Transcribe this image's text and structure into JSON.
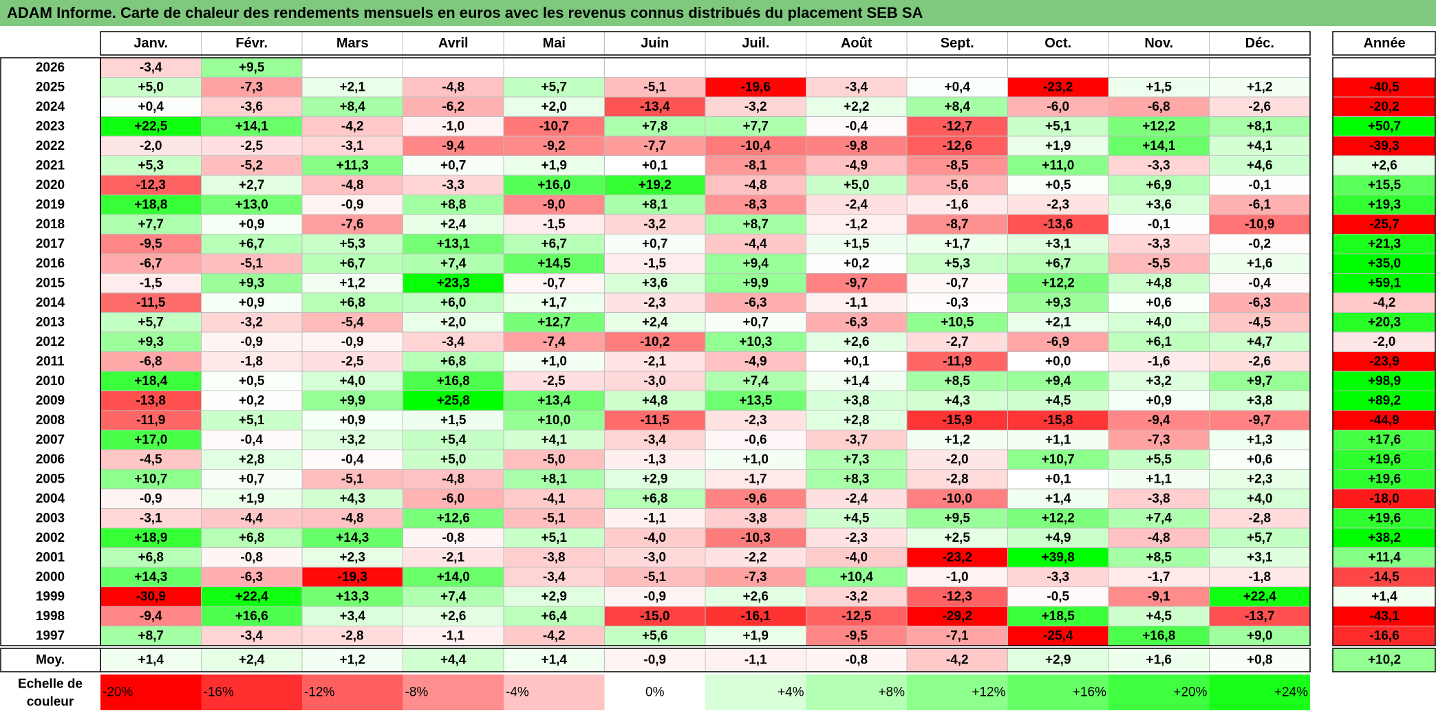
{
  "title": "ADAM Informe. Carte de chaleur des rendements mensuels en euros avec les revenus connus distribués du placement SEB SA",
  "chart_data": {
    "type": "heatmap",
    "months": [
      "Janv.",
      "Févr.",
      "Mars",
      "Avril",
      "Mai",
      "Juin",
      "Juil.",
      "Août",
      "Sept.",
      "Oct.",
      "Nov.",
      "Déc."
    ],
    "year_header": "Année",
    "rows": [
      {
        "year": "2026",
        "values": [
          -3.4,
          9.5,
          null,
          null,
          null,
          null,
          null,
          null,
          null,
          null,
          null,
          null
        ],
        "annual": null
      },
      {
        "year": "2025",
        "values": [
          5.0,
          -7.3,
          2.1,
          -4.8,
          5.7,
          -5.1,
          -19.6,
          -3.4,
          0.4,
          -23.2,
          1.5,
          1.2
        ],
        "annual": -40.5
      },
      {
        "year": "2024",
        "values": [
          0.4,
          -3.6,
          8.4,
          -6.2,
          2.0,
          -13.4,
          -3.2,
          2.2,
          8.4,
          -6.0,
          -6.8,
          -2.6
        ],
        "annual": -20.2
      },
      {
        "year": "2023",
        "values": [
          22.5,
          14.1,
          -4.2,
          -1.0,
          -10.7,
          7.8,
          7.7,
          -0.4,
          -12.7,
          5.1,
          12.2,
          8.1
        ],
        "annual": 50.7
      },
      {
        "year": "2022",
        "values": [
          -2.0,
          -2.5,
          -3.1,
          -9.4,
          -9.2,
          -7.7,
          -10.4,
          -9.8,
          -12.6,
          1.9,
          14.1,
          4.1
        ],
        "annual": -39.3
      },
      {
        "year": "2021",
        "values": [
          5.3,
          -5.2,
          11.3,
          0.7,
          1.9,
          0.1,
          -8.1,
          -4.9,
          -8.5,
          11.0,
          -3.3,
          4.6
        ],
        "annual": 2.6
      },
      {
        "year": "2020",
        "values": [
          -12.3,
          2.7,
          -4.8,
          -3.3,
          16.0,
          19.2,
          -4.8,
          5.0,
          -5.6,
          0.5,
          6.9,
          -0.1
        ],
        "annual": 15.5
      },
      {
        "year": "2019",
        "values": [
          18.8,
          13.0,
          -0.9,
          8.8,
          -9.0,
          8.1,
          -8.3,
          -2.4,
          -1.6,
          -2.3,
          3.6,
          -6.1
        ],
        "annual": 19.3
      },
      {
        "year": "2018",
        "values": [
          7.7,
          0.9,
          -7.6,
          2.4,
          -1.5,
          -3.2,
          8.7,
          -1.2,
          -8.7,
          -13.6,
          -0.1,
          -10.9
        ],
        "annual": -25.7
      },
      {
        "year": "2017",
        "values": [
          -9.5,
          6.7,
          5.3,
          13.1,
          6.7,
          0.7,
          -4.4,
          1.5,
          1.7,
          3.1,
          -3.3,
          -0.2
        ],
        "annual": 21.3
      },
      {
        "year": "2016",
        "values": [
          -6.7,
          -5.1,
          6.7,
          7.4,
          14.5,
          -1.5,
          9.4,
          0.2,
          5.3,
          6.7,
          -5.5,
          1.6
        ],
        "annual": 35.0
      },
      {
        "year": "2015",
        "values": [
          -1.5,
          9.3,
          1.2,
          23.3,
          -0.7,
          3.6,
          9.9,
          -9.7,
          -0.7,
          12.2,
          4.8,
          -0.4
        ],
        "annual": 59.1
      },
      {
        "year": "2014",
        "values": [
          -11.5,
          0.9,
          6.8,
          6.0,
          1.7,
          -2.3,
          -6.3,
          -1.1,
          -0.3,
          9.3,
          0.6,
          -6.3
        ],
        "annual": -4.2
      },
      {
        "year": "2013",
        "values": [
          5.7,
          -3.2,
          -5.4,
          2.0,
          12.7,
          2.4,
          0.7,
          -6.3,
          10.5,
          2.1,
          4.0,
          -4.5
        ],
        "annual": 20.3
      },
      {
        "year": "2012",
        "values": [
          9.3,
          -0.9,
          -0.9,
          -3.4,
          -7.4,
          -10.2,
          10.3,
          2.6,
          -2.7,
          -6.9,
          6.1,
          4.7
        ],
        "annual": -2.0
      },
      {
        "year": "2011",
        "values": [
          -6.8,
          -1.8,
          -2.5,
          6.8,
          1.0,
          -2.1,
          -4.9,
          0.1,
          -11.9,
          0.0,
          -1.6,
          -2.6
        ],
        "annual": -23.9
      },
      {
        "year": "2010",
        "values": [
          18.4,
          0.5,
          4.0,
          16.8,
          -2.5,
          -3.0,
          7.4,
          1.4,
          8.5,
          9.4,
          3.2,
          9.7
        ],
        "annual": 98.9
      },
      {
        "year": "2009",
        "values": [
          -13.8,
          0.2,
          9.9,
          25.8,
          13.4,
          4.8,
          13.5,
          3.8,
          4.3,
          4.5,
          0.9,
          3.8
        ],
        "annual": 89.2
      },
      {
        "year": "2008",
        "values": [
          -11.9,
          5.1,
          0.9,
          1.5,
          10.0,
          -11.5,
          -2.3,
          2.8,
          -15.9,
          -15.8,
          -9.4,
          -9.7
        ],
        "annual": -44.9
      },
      {
        "year": "2007",
        "values": [
          17.0,
          -0.4,
          3.2,
          5.4,
          4.1,
          -3.4,
          -0.6,
          -3.7,
          1.2,
          1.1,
          -7.3,
          1.3
        ],
        "annual": 17.6
      },
      {
        "year": "2006",
        "values": [
          -4.5,
          2.8,
          -0.4,
          5.0,
          -5.0,
          -1.3,
          1.0,
          7.3,
          -2.0,
          10.7,
          5.5,
          0.6
        ],
        "annual": 19.6
      },
      {
        "year": "2005",
        "values": [
          10.7,
          0.7,
          -5.1,
          -4.8,
          8.1,
          2.9,
          -1.7,
          8.3,
          -2.8,
          0.1,
          1.1,
          2.3
        ],
        "annual": 19.6
      },
      {
        "year": "2004",
        "values": [
          -0.9,
          1.9,
          4.3,
          -6.0,
          -4.1,
          6.8,
          -9.6,
          -2.4,
          -10.0,
          1.4,
          -3.8,
          4.0
        ],
        "annual": -18.0
      },
      {
        "year": "2003",
        "values": [
          -3.1,
          -4.4,
          -4.8,
          12.6,
          -5.1,
          -1.1,
          -3.8,
          4.5,
          9.5,
          12.2,
          7.4,
          -2.8
        ],
        "annual": 19.6
      },
      {
        "year": "2002",
        "values": [
          18.9,
          6.8,
          14.3,
          -0.8,
          5.1,
          -4.0,
          -10.3,
          -2.3,
          2.5,
          4.9,
          -4.8,
          5.7
        ],
        "annual": 38.2
      },
      {
        "year": "2001",
        "values": [
          6.8,
          -0.8,
          2.3,
          -2.1,
          -3.8,
          -3.0,
          -2.2,
          -4.0,
          -23.2,
          39.8,
          8.5,
          3.1
        ],
        "annual": 11.4
      },
      {
        "year": "2000",
        "values": [
          14.3,
          -6.3,
          -19.3,
          14.0,
          -3.4,
          -5.1,
          -7.3,
          10.4,
          -1.0,
          -3.3,
          -1.7,
          -1.8
        ],
        "annual": -14.5
      },
      {
        "year": "1999",
        "values": [
          -30.9,
          22.4,
          13.3,
          7.4,
          2.9,
          -0.9,
          2.6,
          -3.2,
          -12.3,
          -0.5,
          -9.1,
          22.4
        ],
        "annual": 1.4
      },
      {
        "year": "1998",
        "values": [
          -9.4,
          16.6,
          3.4,
          2.6,
          6.4,
          -15.0,
          -16.1,
          -12.5,
          -29.2,
          18.5,
          4.5,
          -13.7
        ],
        "annual": -43.1
      },
      {
        "year": "1997",
        "values": [
          8.7,
          -3.4,
          -2.8,
          -1.1,
          -4.2,
          5.6,
          1.9,
          -9.5,
          -7.1,
          -25.4,
          16.8,
          9.0
        ],
        "annual": -16.6
      }
    ],
    "average": {
      "label": "Moy.",
      "values": [
        1.4,
        2.4,
        1.2,
        4.4,
        1.4,
        -0.9,
        -1.1,
        -0.8,
        -4.2,
        2.9,
        1.6,
        0.8
      ],
      "annual": 10.2
    },
    "scale": {
      "label_line1": "Echelle de",
      "label_line2": "couleur",
      "steps": [
        {
          "value": -20,
          "label": "-20%",
          "color": "#ff0000"
        },
        {
          "value": -16,
          "label": "-16%",
          "color": "#ff2f2f"
        },
        {
          "value": -12,
          "label": "-12%",
          "color": "#ff5f5f"
        },
        {
          "value": -8,
          "label": "-8%",
          "color": "#ff8f8f"
        },
        {
          "value": -4,
          "label": "-4%",
          "color": "#ffc3c3"
        },
        {
          "value": 0,
          "label": "0%",
          "color": "#ffffff"
        },
        {
          "value": 4,
          "label": "+4%",
          "color": "#d9ffd9"
        },
        {
          "value": 8,
          "label": "+8%",
          "color": "#b3ffb3"
        },
        {
          "value": 12,
          "label": "+12%",
          "color": "#8cff8c"
        },
        {
          "value": 16,
          "label": "+16%",
          "color": "#66ff66"
        },
        {
          "value": 20,
          "label": "+20%",
          "color": "#40ff40"
        },
        {
          "value": 24,
          "label": "+24%",
          "color": "#19ff19"
        }
      ]
    },
    "colors": {
      "title_bg": "#7fc97f",
      "grid": "#bfbfbf",
      "border": "#000000"
    }
  }
}
